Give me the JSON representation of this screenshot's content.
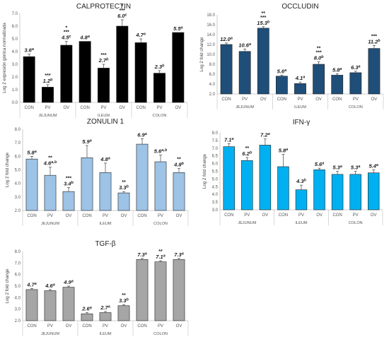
{
  "chart_data": [
    {
      "type": "bar",
      "title": "CALPROTECTIN",
      "ylabel": "Log 2 expresión génica normalizada",
      "ylim": [
        0,
        7
      ],
      "yticks": [
        0,
        1,
        2,
        3,
        4,
        5,
        6,
        7
      ],
      "tick_decimals": 1,
      "color": "#000000",
      "categories": [
        "CON",
        "PV",
        "OV",
        "CON",
        "PV",
        "OV",
        "CON",
        "PV",
        "OV"
      ],
      "groups": [
        "JEJUNUM",
        "ILEUM",
        "COLON"
      ],
      "values": [
        3.6,
        1.2,
        4.5,
        4.8,
        2.7,
        6.0,
        4.7,
        2.3,
        5.5
      ],
      "errors": [
        0.2,
        0.2,
        0.3,
        0.0,
        0.3,
        0.5,
        0.3,
        0.2,
        0.0
      ],
      "labels": [
        "3.6a",
        "1.2b",
        "4.5c",
        "4.8a",
        "2.7b",
        "6.0c",
        "4.7a",
        "2.3b",
        "5.5a"
      ],
      "stars": [
        "",
        "***",
        "*\n***",
        "",
        "***",
        "*\n***",
        "",
        "",
        ""
      ]
    },
    {
      "type": "bar",
      "title": "OCCLUDIN",
      "ylabel": "Log 2 fold change",
      "ylim": [
        2,
        18
      ],
      "yticks": [
        2,
        4,
        6,
        8,
        10,
        12,
        14,
        16,
        18
      ],
      "tick_decimals": 1,
      "color": "#1f4e79",
      "categories": [
        "CON",
        "PV",
        "OV",
        "CON",
        "PV",
        "OV",
        "CON",
        "PV",
        "OV"
      ],
      "groups": [
        "JEJUNUM",
        "ILEUM",
        "COLON"
      ],
      "values": [
        12.0,
        10.6,
        15.3,
        5.6,
        4.1,
        8.0,
        5.8,
        6.3,
        11.2
      ],
      "errors": [
        0.3,
        0.5,
        0.3,
        0.2,
        0.3,
        0.5,
        0.3,
        0.3,
        0.6
      ],
      "labels": [
        "12.0a",
        "10.6a",
        "15.3b",
        "5.6a",
        "4.1a",
        "8.0b",
        "5.8a",
        "6.3a",
        "11.2b"
      ],
      "stars": [
        "",
        "",
        "**\n***",
        "",
        "",
        "**\n***",
        "",
        "",
        "***"
      ]
    },
    {
      "type": "bar",
      "title": "ZONULIN 1",
      "ylabel": "Log 2 fold change",
      "ylim": [
        2,
        8
      ],
      "yticks": [
        2,
        3,
        4,
        5,
        6,
        7,
        8
      ],
      "tick_decimals": 1,
      "color": "#9dc3e6",
      "categories": [
        "CON",
        "PV",
        "OV",
        "CON",
        "PV",
        "OV",
        "CON",
        "PV",
        "OV"
      ],
      "groups": [
        "JEJUNUM",
        "ILEUM",
        "COLON"
      ],
      "values": [
        5.8,
        4.6,
        3.4,
        5.9,
        4.8,
        3.3,
        6.9,
        5.6,
        4.8
      ],
      "errors": [
        0.2,
        0.6,
        0.3,
        0.9,
        0.7,
        0.1,
        0.4,
        0.5,
        0.3
      ],
      "labels": [
        "5.8a",
        "4.6a,b",
        "3.4b",
        "5.9a",
        "4.8a",
        "3.3b",
        "6.9a",
        "5.6a,b",
        "4.8b"
      ],
      "stars": [
        "",
        "**",
        "***",
        "",
        "",
        "**",
        "",
        "",
        "**"
      ]
    },
    {
      "type": "bar",
      "title": "IFN-γ",
      "ylabel": "Log 2 fold change",
      "ylim": [
        3,
        8
      ],
      "yticks": [
        3.0,
        3.5,
        4.0,
        4.5,
        5.0,
        5.5,
        6.0,
        6.5,
        7.0,
        7.5,
        8.0
      ],
      "tick_decimals": 1,
      "color": "#00b0f0",
      "categories": [
        "CON",
        "PV",
        "OV",
        "CON",
        "PV",
        "OV",
        "CON",
        "PV",
        "OV"
      ],
      "groups": [
        "JEJUNUM",
        "ILEUM",
        "COLON"
      ],
      "values": [
        7.1,
        6.2,
        7.2,
        5.8,
        4.3,
        5.6,
        5.3,
        5.3,
        5.4
      ],
      "errors": [
        0.2,
        0.2,
        0.4,
        0.8,
        0.3,
        0.1,
        0.2,
        0.2,
        0.2
      ],
      "labels": [
        "7.1a",
        "6.2b",
        "7.2a",
        "5.8a",
        "4.3b",
        "5.6a",
        "5.3a",
        "5.3a",
        "5.4a"
      ],
      "stars": [
        "",
        "**",
        "",
        "",
        "",
        "",
        "",
        "",
        ""
      ]
    },
    {
      "type": "bar",
      "title": "TGF-β",
      "ylabel": "Log 2 fold change",
      "ylim": [
        2,
        8
      ],
      "yticks": [
        2,
        3,
        4,
        5,
        6,
        7,
        8
      ],
      "tick_decimals": 1,
      "color": "#a6a6a6",
      "categories": [
        "CON",
        "PV",
        "OV",
        "CON",
        "PV",
        "OV",
        "CON",
        "PV",
        "OV"
      ],
      "groups": [
        "JEJUNUM",
        "ILEUM",
        "COLON"
      ],
      "values": [
        4.7,
        4.6,
        4.9,
        2.6,
        2.7,
        3.3,
        7.3,
        7.1,
        7.3
      ],
      "errors": [
        0.1,
        0.1,
        0.1,
        0.1,
        0.1,
        0.1,
        0.1,
        0.1,
        0.1
      ],
      "labels": [
        "4.7a",
        "4.6a",
        "4.9a",
        "2.6a",
        "2.7a",
        "3.3b",
        "7.3a",
        "7.1a",
        "7.3a"
      ],
      "stars": [
        "",
        "",
        "",
        "",
        "",
        "**",
        "",
        "**",
        ""
      ]
    }
  ]
}
